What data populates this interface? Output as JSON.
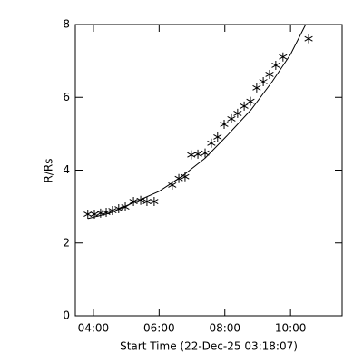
{
  "chart_data": {
    "type": "scatter",
    "x_label": "Start Time (22-Dec-25 03:18:07)",
    "y_label": "R/Rs",
    "xlim": [
      3.45,
      11.57
    ],
    "ylim": [
      0,
      8
    ],
    "xticks": [
      {
        "value": 4,
        "label": "04:00"
      },
      {
        "value": 6,
        "label": "06:00"
      },
      {
        "value": 8,
        "label": "08:00"
      },
      {
        "value": 10,
        "label": "10:00"
      }
    ],
    "yticks": [
      0,
      2,
      4,
      6,
      8
    ],
    "series": [
      {
        "mode": "markers",
        "color": "#000000",
        "x": [
          3.83,
          4.03,
          4.22,
          4.39,
          4.58,
          4.77,
          4.97,
          5.22,
          5.44,
          5.63,
          5.85,
          6.4,
          6.6,
          6.79,
          6.98,
          7.18,
          7.4,
          7.59,
          7.78,
          7.98,
          8.2,
          8.39,
          8.59,
          8.78,
          8.97,
          9.17,
          9.36,
          9.55,
          9.77,
          10.55
        ],
        "values": [
          2.79,
          2.79,
          2.82,
          2.84,
          2.89,
          2.94,
          2.99,
          3.14,
          3.17,
          3.14,
          3.14,
          3.59,
          3.77,
          3.82,
          4.42,
          4.44,
          4.47,
          4.74,
          4.91,
          5.26,
          5.41,
          5.56,
          5.76,
          5.89,
          6.26,
          6.43,
          6.63,
          6.88,
          7.11,
          7.61
        ]
      },
      {
        "mode": "lines",
        "color": "#000000",
        "x": [
          3.83,
          4.5,
          5.3,
          6.0,
          6.68,
          7.4,
          8.06,
          8.8,
          9.44,
          10.0,
          10.46
        ],
        "values": [
          2.67,
          2.82,
          3.14,
          3.42,
          3.82,
          4.33,
          4.94,
          5.66,
          6.43,
          7.18,
          8.0
        ]
      }
    ]
  }
}
